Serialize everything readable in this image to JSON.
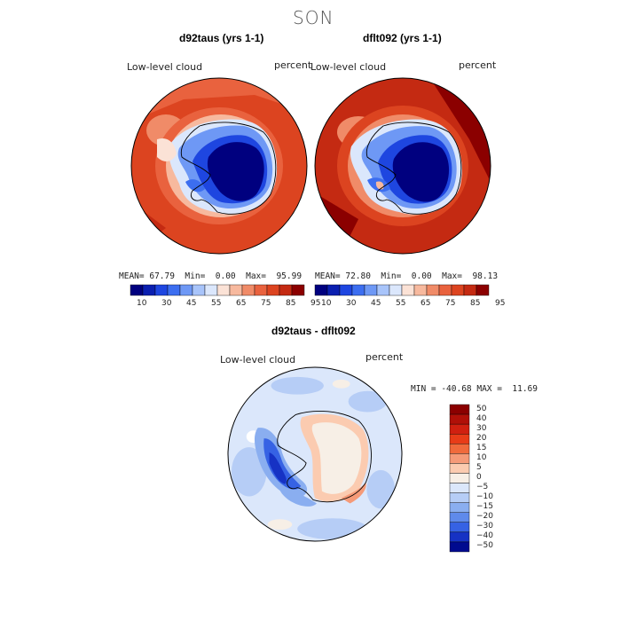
{
  "figure": {
    "title": "SON"
  },
  "panels": [
    {
      "title": "d92taus (yrs 1-1)",
      "variable": "Low-level cloud",
      "units": "percent",
      "stats": {
        "mean_label": "MEAN=",
        "mean": "67.79",
        "min_label": "Min=",
        "min": "0.00",
        "max_label": "Max=",
        "max": "95.99"
      },
      "colorbar_ticks": [
        "10",
        "30",
        "45",
        "55",
        "65",
        "75",
        "85",
        "95"
      ]
    },
    {
      "title": "dflt092 (yrs 1-1)",
      "variable": "Low-level cloud",
      "units": "percent",
      "stats": {
        "mean_label": "MEAN=",
        "mean": "72.80",
        "min_label": "Min=",
        "min": "0.00",
        "max_label": "Max=",
        "max": "98.13"
      },
      "colorbar_ticks": [
        "10",
        "30",
        "45",
        "55",
        "65",
        "75",
        "85",
        "95"
      ]
    },
    {
      "title": "d92taus - dflt092",
      "variable": "Low-level cloud",
      "units": "percent",
      "stats_text": "MIN = -40.68 MAX =  11.69",
      "colorbar_ticks": [
        "50",
        "40",
        "30",
        "20",
        "15",
        "10",
        "5",
        "0",
        "−5",
        "−10",
        "−15",
        "−20",
        "−30",
        "−40",
        "−50"
      ]
    }
  ],
  "colors": {
    "abs_scale": [
      "#00007f",
      "#0a1fb0",
      "#1e46e0",
      "#3c6ef0",
      "#6e98f5",
      "#a8c4fa",
      "#dbe7fc",
      "#fbe2d6",
      "#f7b99e",
      "#f08b68",
      "#e9623e",
      "#dc4420",
      "#c42a12",
      "#8b0000"
    ],
    "diff_scale": [
      "#8b0000",
      "#b01008",
      "#d02010",
      "#e83c18",
      "#f06a3c",
      "#f59a78",
      "#fbcbb0",
      "#f7efe6",
      "#dbe7fb",
      "#b6cdf6",
      "#8aaef0",
      "#5f8aeb",
      "#3662e4",
      "#1632c4",
      "#000a8f"
    ]
  }
}
